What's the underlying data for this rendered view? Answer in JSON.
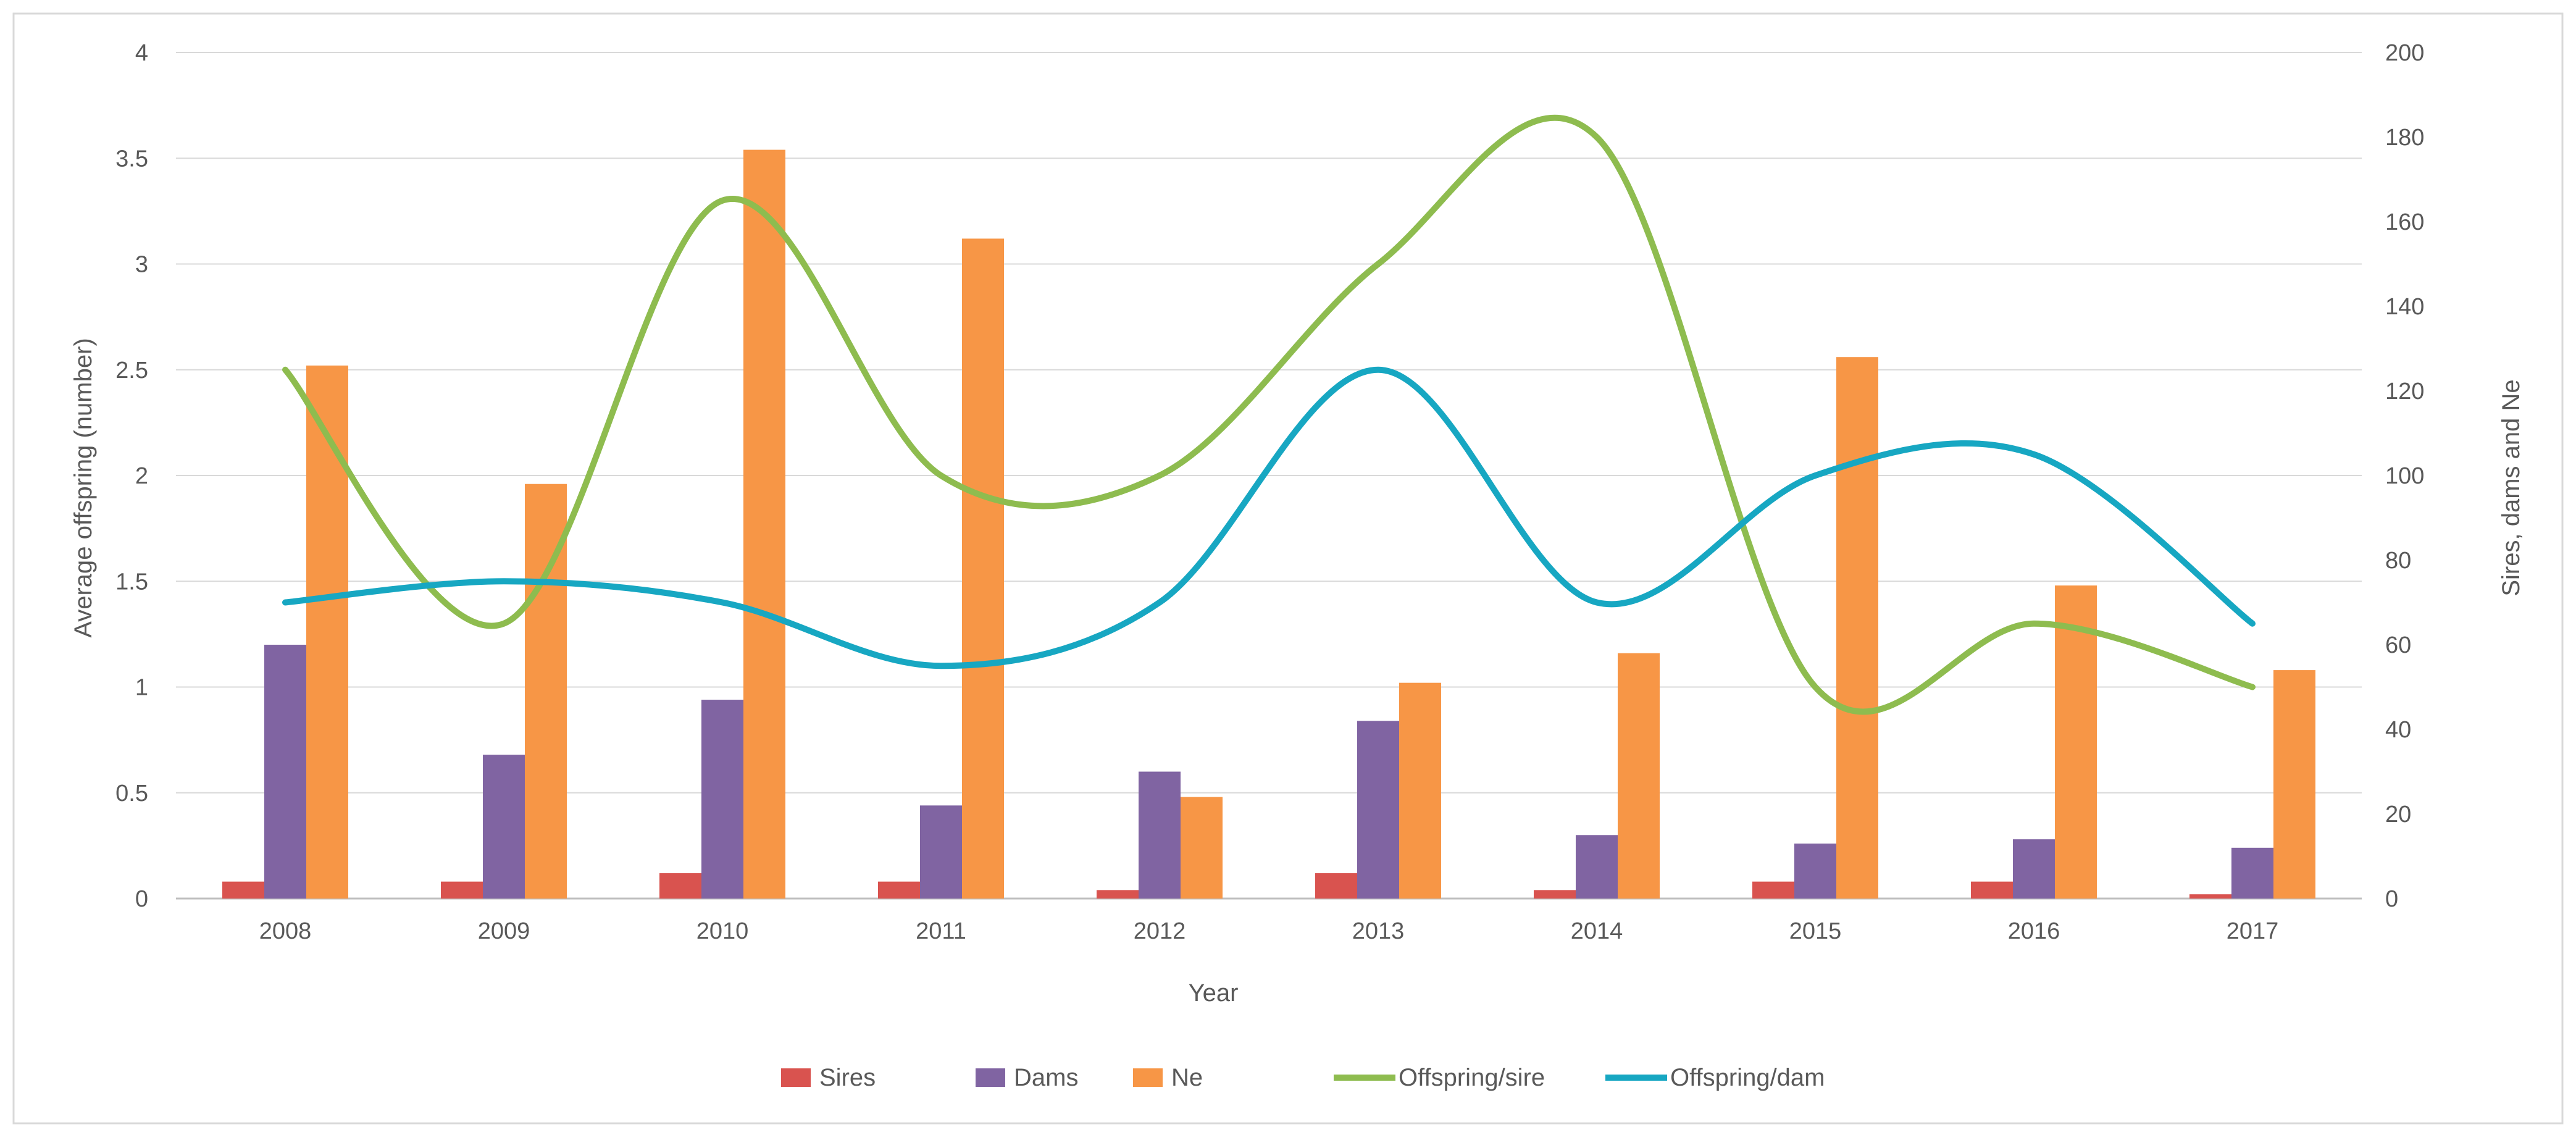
{
  "chart_data": {
    "type": "bar+line",
    "xlabel": "Year",
    "ylabel_left": "Average offspring (number)",
    "ylabel_right": "Sires, dams and Ne",
    "ylim_left": [
      0,
      4
    ],
    "ylim_right": [
      0,
      200
    ],
    "left_ticks": [
      "0",
      "0.5",
      "1",
      "1.5",
      "2",
      "2.5",
      "3",
      "3.5",
      "4"
    ],
    "right_ticks": [
      "0",
      "20",
      "40",
      "60",
      "80",
      "100",
      "120",
      "140",
      "160",
      "180",
      "200"
    ],
    "grid": true,
    "legend_position": "bottom",
    "categories": [
      "2008",
      "2009",
      "2010",
      "2011",
      "2012",
      "2013",
      "2014",
      "2015",
      "2016",
      "2017"
    ],
    "bar_series": [
      {
        "name": "Sires",
        "axis": "right",
        "color": "#d9534f",
        "values": [
          4,
          4,
          6,
          4,
          2,
          6,
          2,
          4,
          4,
          1
        ]
      },
      {
        "name": "Dams",
        "axis": "right",
        "color": "#8064a2",
        "values": [
          60,
          34,
          47,
          22,
          30,
          42,
          15,
          13,
          14,
          12
        ]
      },
      {
        "name": "Ne",
        "axis": "right",
        "color": "#f79646",
        "values": [
          126,
          98,
          177,
          156,
          24,
          51,
          58,
          128,
          74,
          54
        ]
      }
    ],
    "line_series": [
      {
        "name": "Offspring/sire",
        "axis": "left",
        "color": "#8ebc4f",
        "values": [
          2.5,
          1.3,
          3.3,
          2.0,
          2.0,
          3.0,
          3.6,
          1.0,
          1.3,
          1.0
        ]
      },
      {
        "name": "Offspring/dam",
        "axis": "left",
        "color": "#17a7c2",
        "values": [
          1.4,
          1.5,
          1.4,
          1.1,
          1.4,
          2.5,
          1.4,
          2.0,
          2.1,
          1.3
        ]
      }
    ],
    "legend": [
      {
        "name": "Sires",
        "kind": "bar",
        "color": "#d9534f"
      },
      {
        "name": "Dams",
        "kind": "bar",
        "color": "#8064a2"
      },
      {
        "name": "Ne",
        "kind": "bar",
        "color": "#f79646"
      },
      {
        "name": "Offspring/sire",
        "kind": "line",
        "color": "#8ebc4f"
      },
      {
        "name": "Offspring/dam",
        "kind": "line",
        "color": "#17a7c2"
      }
    ]
  }
}
